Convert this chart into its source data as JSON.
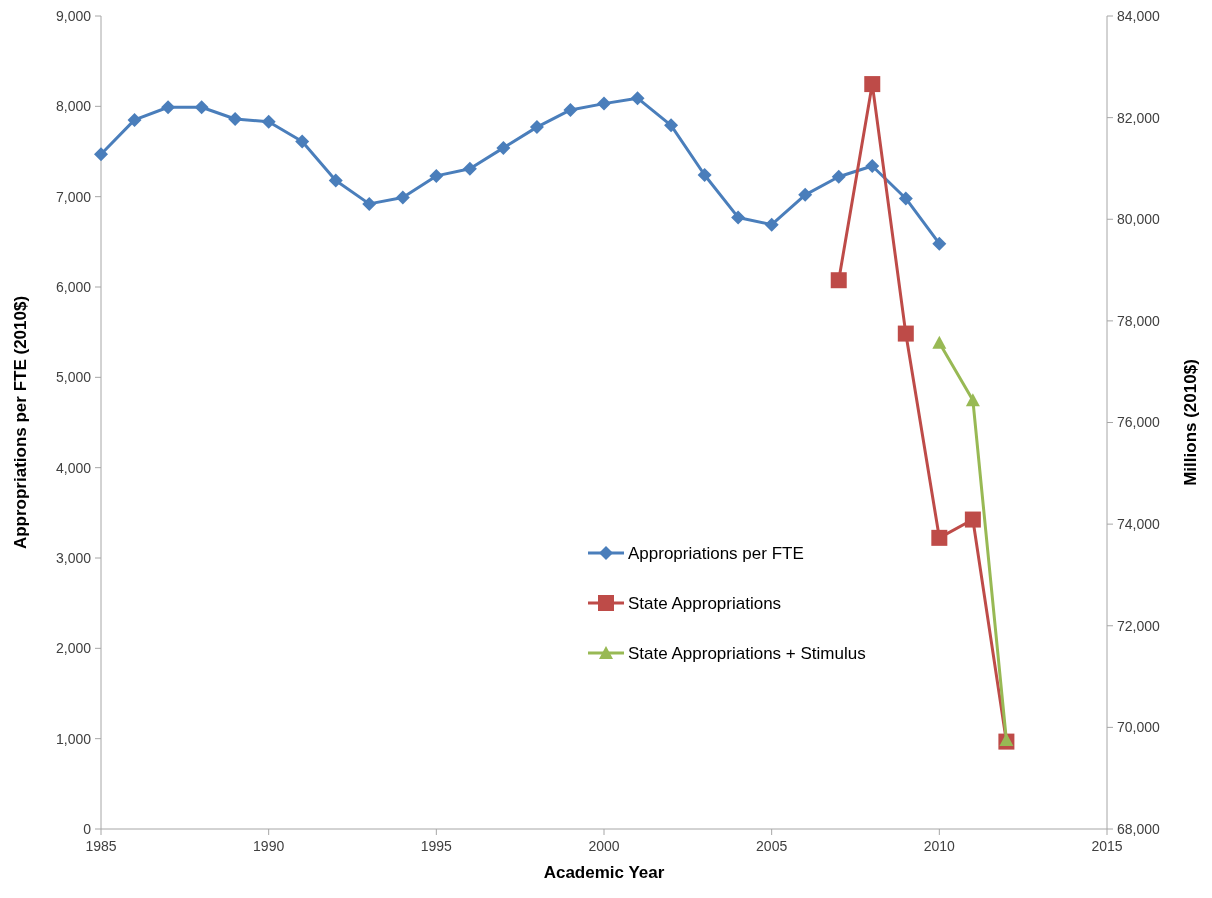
{
  "chart_data": {
    "type": "line",
    "xlabel": "Academic Year",
    "ylabel": "Appropriations per FTE (2010$)",
    "y2label": "Millions (2010$)",
    "xlim": [
      1985,
      2015
    ],
    "xticks": [
      1985,
      1990,
      1995,
      2000,
      2005,
      2010,
      2015
    ],
    "ylim": [
      0,
      9000
    ],
    "yticks": [
      {
        "value": 0,
        "label": "0"
      },
      {
        "value": 1000,
        "label": "1,000"
      },
      {
        "value": 2000,
        "label": "2,000"
      },
      {
        "value": 3000,
        "label": "3,000"
      },
      {
        "value": 4000,
        "label": "4,000"
      },
      {
        "value": 5000,
        "label": "5,000"
      },
      {
        "value": 6000,
        "label": "6,000"
      },
      {
        "value": 7000,
        "label": "7,000"
      },
      {
        "value": 8000,
        "label": "8,000"
      },
      {
        "value": 9000,
        "label": "9,000"
      }
    ],
    "y2lim": [
      68000,
      84000
    ],
    "y2ticks": [
      {
        "value": 68000,
        "label": "68,000"
      },
      {
        "value": 70000,
        "label": "70,000"
      },
      {
        "value": 72000,
        "label": "72,000"
      },
      {
        "value": 74000,
        "label": "74,000"
      },
      {
        "value": 76000,
        "label": "76,000"
      },
      {
        "value": 78000,
        "label": "78,000"
      },
      {
        "value": 80000,
        "label": "80,000"
      },
      {
        "value": 82000,
        "label": "82,000"
      },
      {
        "value": 84000,
        "label": "84,000"
      }
    ],
    "grid": false,
    "legend": "right",
    "series": [
      {
        "name": "Appropriations per FTE",
        "color": "#4a7ebb",
        "marker": "diamond",
        "x": [
          1985,
          1986,
          1987,
          1988,
          1989,
          1990,
          1991,
          1992,
          1993,
          1994,
          1995,
          1996,
          1997,
          1998,
          1999,
          2000,
          2001,
          2002,
          2003,
          2004,
          2005,
          2006,
          2007,
          2008,
          2009,
          2010
        ],
        "values": [
          7470,
          7850,
          7990,
          7990,
          7860,
          7830,
          7610,
          7180,
          6920,
          6990,
          7230,
          7310,
          7540,
          7770,
          7960,
          8030,
          8090,
          7790,
          7240,
          6770,
          6690,
          7020,
          7220,
          7340,
          6980,
          6480
        ]
      },
      {
        "name": "State Appropriations",
        "color": "#be4b48",
        "marker": "square",
        "axis": "y2",
        "x": [
          2007,
          2008,
          2009,
          2010,
          2011,
          2012
        ],
        "values": [
          78800,
          82660,
          77750,
          73730,
          74090,
          69720
        ]
      },
      {
        "name": "State Appropriations + Stimulus",
        "color": "#98b954",
        "marker": "triangle",
        "axis": "y2",
        "x": [
          2010,
          2011,
          2012
        ],
        "values": [
          77570,
          76440,
          69750
        ]
      }
    ]
  }
}
